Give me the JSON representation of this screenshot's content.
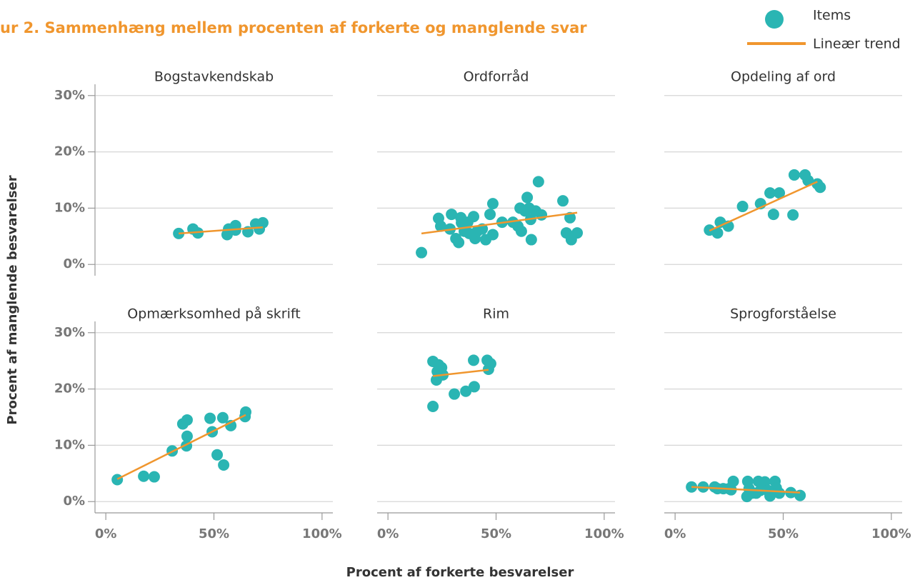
{
  "title": "ur 2. Sammenhæng mellem procenten af forkerte og manglende svar",
  "x_label": "Procent af forkerte besvarelser",
  "y_label": "Procent af manglende besvarelser",
  "legend": [
    {
      "name": "Items",
      "color": "#2ab5b3"
    },
    {
      "name": "Lineær trend",
      "color": "#f0962e"
    }
  ],
  "axes": {
    "xlim": [
      -5,
      105
    ],
    "ylim": [
      -2,
      32
    ],
    "xticks": [
      {
        "value": 0,
        "label": "0%"
      },
      {
        "value": 50,
        "label": "50%"
      },
      {
        "value": 100,
        "label": "100%"
      }
    ],
    "yticks": [
      {
        "value": 0,
        "label": "0%"
      },
      {
        "value": 10,
        "label": "10%"
      },
      {
        "value": 20,
        "label": "20%"
      },
      {
        "value": 30,
        "label": "30%"
      }
    ],
    "grid": true
  },
  "chart_data": [
    {
      "type": "scatter",
      "title": "Bogstavkendskab",
      "x": [
        33.7,
        40.3,
        42.6,
        56.1,
        56.8,
        60,
        60,
        65.7,
        69.3,
        71,
        72.6
      ],
      "values": [
        5.5,
        6.3,
        5.6,
        5.3,
        6.3,
        6.9,
        6.1,
        5.8,
        7.2,
        6.3,
        7.4
      ],
      "trend": {
        "x": [
          33.7,
          72.6
        ],
        "values": [
          5.5,
          6.6
        ]
      }
    },
    {
      "type": "scatter",
      "title": "Ordforråd",
      "x": [
        15.5,
        23.4,
        24.4,
        29.4,
        28.7,
        31.4,
        32.7,
        33.7,
        34,
        35.3,
        36.9,
        37.6,
        39.6,
        40.3,
        41.3,
        43.6,
        45.2,
        47.2,
        48.5,
        48.5,
        52.8,
        57.8,
        60.1,
        61.1,
        61.7,
        63.4,
        64.4,
        65.3,
        66,
        66.3,
        68.3,
        69.6,
        71,
        80.9,
        82.5,
        84.2,
        84.8,
        87.5
      ],
      "values": [
        2.1,
        8.2,
        6.8,
        8.9,
        6.3,
        4.6,
        3.9,
        8.3,
        7.4,
        5.9,
        7.5,
        5.5,
        8.5,
        4.6,
        5.9,
        6.3,
        4.4,
        8.9,
        10.8,
        5.3,
        7.5,
        7.5,
        6.8,
        10,
        5.9,
        9.5,
        11.9,
        10,
        8,
        4.4,
        9.5,
        14.7,
        8.8,
        11.3,
        5.6,
        8.3,
        4.4,
        5.6
      ],
      "trend": {
        "x": [
          15.5,
          87.5
        ],
        "values": [
          5.5,
          9.2
        ]
      }
    },
    {
      "type": "scatter",
      "title": "Opdeling af ord",
      "x": [
        15.9,
        19.6,
        20.9,
        24.6,
        31.2,
        39.5,
        43.9,
        45.5,
        48.2,
        54.5,
        55.1,
        60.1,
        61.5,
        65.8,
        67.1
      ],
      "values": [
        6.1,
        5.6,
        7.5,
        6.8,
        10.3,
        10.8,
        12.7,
        8.9,
        12.7,
        8.8,
        15.9,
        15.9,
        14.9,
        14.3,
        13.7
      ],
      "trend": {
        "x": [
          15.9,
          65.8
        ],
        "values": [
          6.0,
          14.7
        ]
      }
    },
    {
      "type": "scatter",
      "title": "Opmærksomhed på skrift",
      "x": [
        5.3,
        17.5,
        22.4,
        30.7,
        35.6,
        37.6,
        37.6,
        37.3,
        48.2,
        49.2,
        51.5,
        54.1,
        54.5,
        57.8,
        64.4,
        64.7
      ],
      "values": [
        3.9,
        4.5,
        4.4,
        9,
        13.8,
        14.5,
        11.6,
        9.9,
        14.8,
        12.4,
        8.3,
        14.9,
        6.5,
        13.5,
        15.1,
        15.9
      ],
      "trend": {
        "x": [
          5.3,
          64.7
        ],
        "values": [
          4.0,
          15.4
        ]
      }
    },
    {
      "type": "scatter",
      "title": "Rim",
      "x": [
        20.8,
        20.8,
        22.4,
        23.4,
        22.8,
        24.8,
        25.4,
        24.4,
        30.7,
        36,
        39.6,
        39.9,
        45.9,
        46.5,
        47.5
      ],
      "values": [
        24.9,
        16.9,
        21.6,
        24.3,
        23.1,
        23.8,
        22.5,
        22.8,
        19.1,
        19.6,
        25.1,
        20.4,
        25.1,
        23.5,
        24.5
      ],
      "trend": {
        "x": [
          20.8,
          46.5
        ],
        "values": [
          22.3,
          23.4
        ]
      }
    },
    {
      "type": "scatter",
      "title": "Sprogforståelse",
      "x": [
        7.6,
        13,
        18.3,
        19.6,
        22.3,
        24.9,
        25.9,
        26.9,
        33.6,
        33.2,
        34.2,
        35.5,
        37.5,
        38.5,
        39.5,
        41.5,
        42.9,
        43.9,
        46.2,
        46.8,
        48.2,
        53.5,
        57.8
      ],
      "values": [
        2.6,
        2.6,
        2.6,
        2.3,
        2.3,
        2.3,
        2.1,
        3.6,
        3.6,
        0.9,
        2.3,
        1.5,
        1.5,
        3.6,
        2,
        3.5,
        2,
        1,
        3.6,
        2.4,
        1.5,
        1.6,
        1.1
      ],
      "trend": {
        "x": [
          7.6,
          57.8
        ],
        "values": [
          2.6,
          1.6
        ]
      }
    }
  ]
}
